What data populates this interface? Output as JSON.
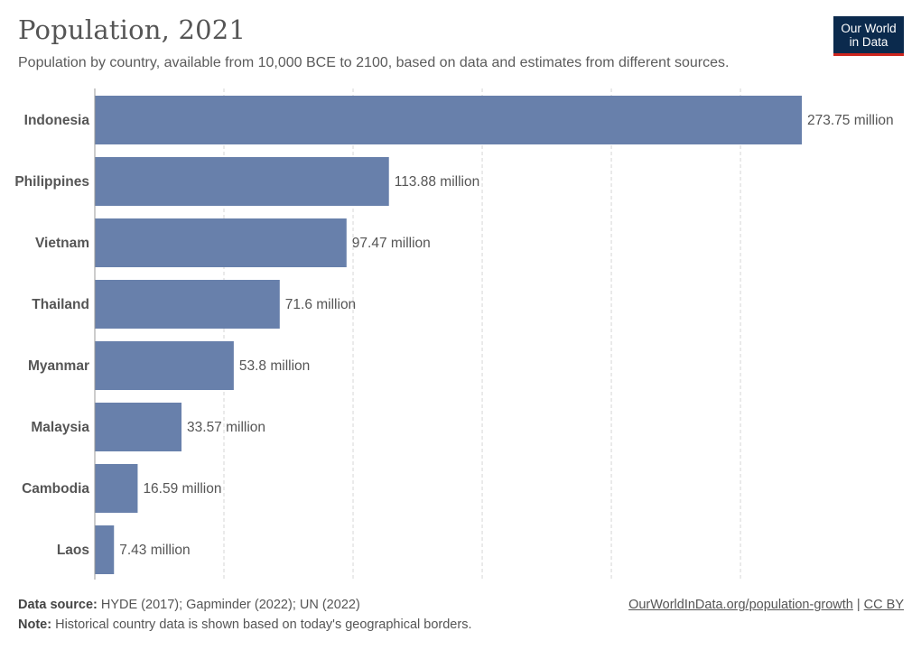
{
  "header": {
    "title": "Population, 2021",
    "subtitle": "Population by country, available from 10,000 BCE to 2100, based on data and estimates from different sources."
  },
  "logo": {
    "line1": "Our World",
    "line2": "in Data"
  },
  "footer": {
    "source_label": "Data source:",
    "source_text": " HYDE (2017); Gapminder (2022); UN (2022)",
    "note_label": "Note:",
    "note_text": " Historical country data is shown based on today's geographical borders.",
    "link_text": "OurWorldInData.org/population-growth",
    "separator": " | ",
    "license_text": "CC BY"
  },
  "colors": {
    "bar": "#6880ab",
    "logo_bg": "#0b2a4d",
    "logo_accent": "#ce261e"
  },
  "chart_data": {
    "type": "bar",
    "orientation": "horizontal",
    "title": "Population, 2021",
    "categories": [
      "Indonesia",
      "Philippines",
      "Vietnam",
      "Thailand",
      "Myanmar",
      "Malaysia",
      "Cambodia",
      "Laos"
    ],
    "values": [
      273750000,
      113880000,
      97470000,
      71600000,
      53800000,
      33570000,
      16590000,
      7430000
    ],
    "value_labels": [
      "273.75 million",
      "113.88 million",
      "97.47 million",
      "71.6 million",
      "53.8 million",
      "33.57 million",
      "16.59 million",
      "7.43 million"
    ],
    "xlim": [
      0,
      273750000
    ],
    "grid": true
  }
}
